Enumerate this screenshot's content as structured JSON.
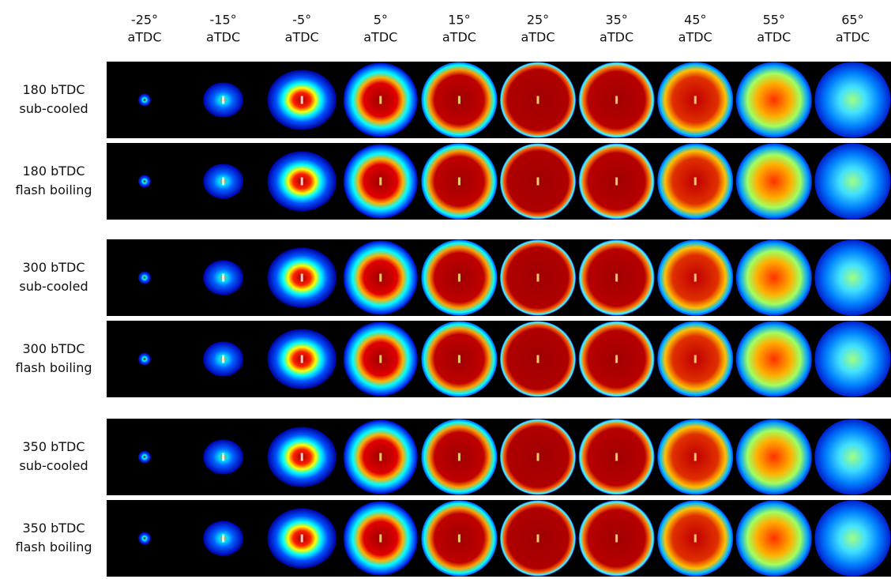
{
  "columns": [
    {
      "angle": "-25°",
      "reference": "aTDC"
    },
    {
      "angle": "-15°",
      "reference": "aTDC"
    },
    {
      "angle": "-5°",
      "reference": "aTDC"
    },
    {
      "angle": "5°",
      "reference": "aTDC"
    },
    {
      "angle": "15°",
      "reference": "aTDC"
    },
    {
      "angle": "25°",
      "reference": "aTDC"
    },
    {
      "angle": "35°",
      "reference": "aTDC"
    },
    {
      "angle": "45°",
      "reference": "aTDC"
    },
    {
      "angle": "55°",
      "reference": "aTDC"
    },
    {
      "angle": "65°",
      "reference": "aTDC"
    }
  ],
  "rows": [
    {
      "timing": "180 bTDC",
      "condition": "sub-cooled"
    },
    {
      "timing": "180 bTDC",
      "condition": "flash boiling"
    },
    {
      "timing": "300 bTDC",
      "condition": "sub-cooled"
    },
    {
      "timing": "300 bTDC",
      "condition": "flash boiling"
    },
    {
      "timing": "350 bTDC",
      "condition": "sub-cooled"
    },
    {
      "timing": "350 bTDC",
      "condition": "flash boiling"
    }
  ]
}
